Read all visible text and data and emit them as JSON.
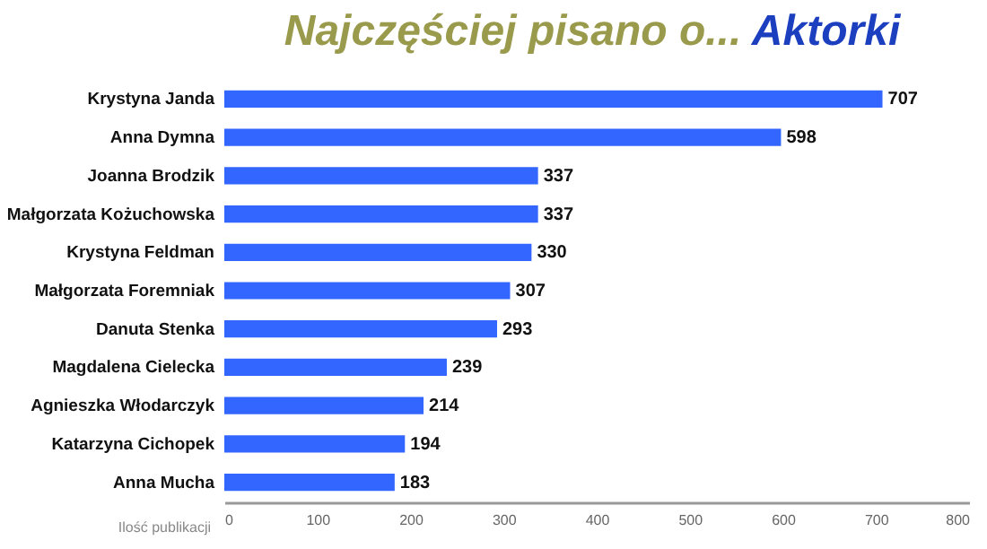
{
  "chart_data": {
    "type": "bar",
    "orientation": "horizontal",
    "title": "Najczęściej pisano o...",
    "subtitle": "Aktorki",
    "xlabel": "Ilość publikacji",
    "categories": [
      "Krystyna Janda",
      "Anna Dymna",
      "Joanna Brodzik",
      "Małgorzata Kożuchowska",
      "Krystyna Feldman",
      "Małgorzata Foremniak",
      "Danuta Stenka",
      "Magdalena Cielecka",
      "Agnieszka Włodarczyk",
      "Katarzyna Cichopek",
      "Anna Mucha"
    ],
    "values": [
      707,
      598,
      337,
      337,
      330,
      307,
      293,
      239,
      214,
      194,
      183
    ],
    "color": "#3366ff",
    "xlim": [
      0,
      800
    ],
    "xticks": [
      0,
      100,
      200,
      300,
      400,
      500,
      600,
      700,
      800
    ],
    "data_labels": true
  }
}
